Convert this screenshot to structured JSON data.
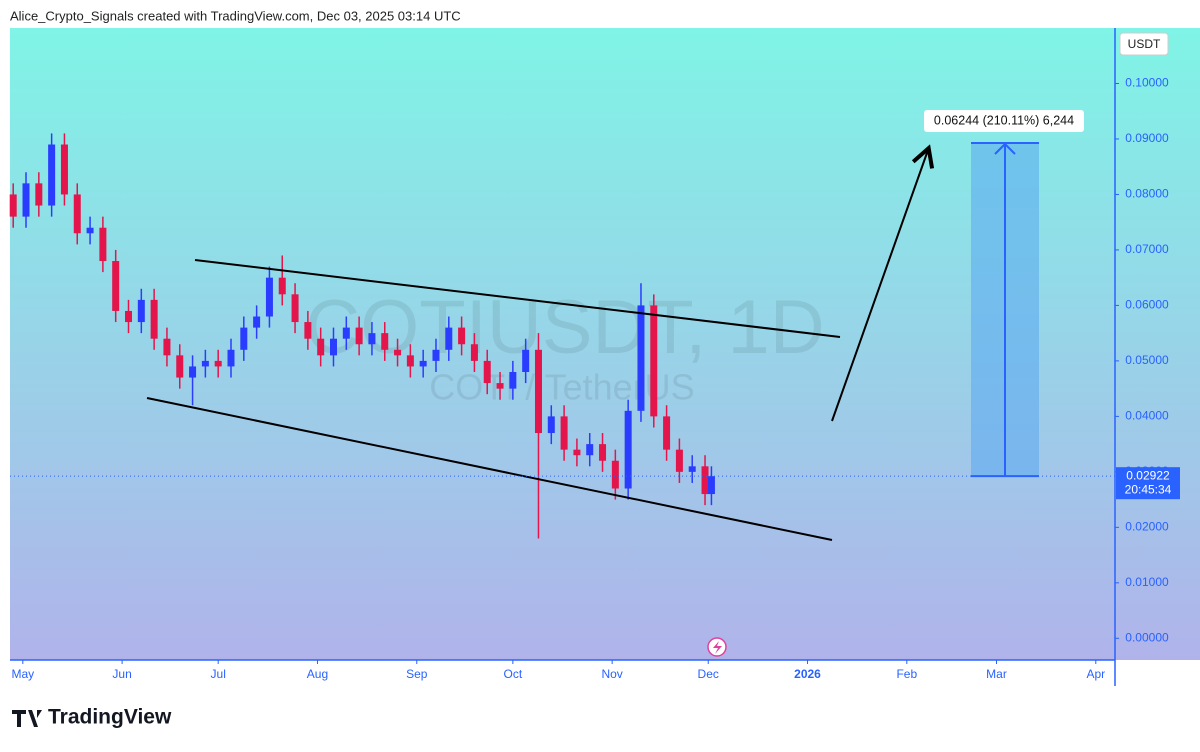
{
  "header": "Alice_Crypto_Signals created with TradingView.com, Dec 03, 2025 03:14 UTC",
  "chart_data": {
    "type": "candlestick",
    "watermark_title": "COTIUSDT, 1D",
    "watermark_subtitle": "COTI / TetherUS",
    "currency": "USDT",
    "up_color": "#2a3dff",
    "down_color": "#e3154a",
    "x": [
      -3,
      1,
      5,
      9,
      13,
      17,
      21,
      25,
      29,
      33,
      37,
      41,
      45,
      49,
      53,
      57,
      61,
      65,
      69,
      73,
      77,
      81,
      85,
      89,
      93,
      97,
      101,
      105,
      109,
      113,
      117,
      121,
      125,
      129,
      133,
      137,
      141,
      145,
      149,
      153,
      157,
      161,
      165,
      169,
      173,
      177,
      181,
      185,
      189,
      193,
      197,
      201,
      205,
      209,
      213,
      215
    ],
    "open": [
      0.08,
      0.076,
      0.082,
      0.078,
      0.089,
      0.08,
      0.073,
      0.074,
      0.068,
      0.059,
      0.057,
      0.061,
      0.054,
      0.051,
      0.047,
      0.049,
      0.05,
      0.049,
      0.052,
      0.056,
      0.058,
      0.065,
      0.062,
      0.057,
      0.054,
      0.051,
      0.054,
      0.056,
      0.053,
      0.055,
      0.052,
      0.051,
      0.049,
      0.05,
      0.052,
      0.056,
      0.053,
      0.05,
      0.046,
      0.045,
      0.048,
      0.052,
      0.037,
      0.04,
      0.034,
      0.033,
      0.035,
      0.032,
      0.027,
      0.041,
      0.06,
      0.04,
      0.034,
      0.03,
      0.031,
      0.026
    ],
    "high": [
      0.082,
      0.084,
      0.084,
      0.091,
      0.091,
      0.082,
      0.076,
      0.076,
      0.07,
      0.061,
      0.063,
      0.063,
      0.056,
      0.053,
      0.051,
      0.052,
      0.052,
      0.054,
      0.058,
      0.06,
      0.067,
      0.069,
      0.064,
      0.059,
      0.056,
      0.056,
      0.058,
      0.058,
      0.057,
      0.057,
      0.054,
      0.053,
      0.052,
      0.054,
      0.058,
      0.058,
      0.055,
      0.052,
      0.048,
      0.05,
      0.054,
      0.055,
      0.042,
      0.042,
      0.036,
      0.037,
      0.037,
      0.034,
      0.043,
      0.064,
      0.062,
      0.042,
      0.036,
      0.033,
      0.033,
      0.031
    ],
    "low": [
      0.074,
      0.074,
      0.076,
      0.076,
      0.078,
      0.071,
      0.071,
      0.066,
      0.057,
      0.055,
      0.055,
      0.052,
      0.049,
      0.045,
      0.042,
      0.047,
      0.047,
      0.047,
      0.05,
      0.054,
      0.056,
      0.06,
      0.055,
      0.052,
      0.049,
      0.049,
      0.052,
      0.051,
      0.051,
      0.05,
      0.049,
      0.047,
      0.047,
      0.048,
      0.05,
      0.051,
      0.048,
      0.044,
      0.043,
      0.043,
      0.046,
      0.018,
      0.035,
      0.032,
      0.031,
      0.031,
      0.03,
      0.025,
      0.025,
      0.039,
      0.038,
      0.032,
      0.028,
      0.028,
      0.024,
      0.024
    ],
    "close": [
      0.076,
      0.082,
      0.078,
      0.089,
      0.08,
      0.073,
      0.074,
      0.068,
      0.059,
      0.057,
      0.061,
      0.054,
      0.051,
      0.047,
      0.049,
      0.05,
      0.049,
      0.052,
      0.056,
      0.058,
      0.065,
      0.062,
      0.057,
      0.054,
      0.051,
      0.054,
      0.056,
      0.053,
      0.055,
      0.052,
      0.051,
      0.049,
      0.05,
      0.052,
      0.056,
      0.053,
      0.05,
      0.046,
      0.045,
      0.048,
      0.052,
      0.037,
      0.04,
      0.034,
      0.033,
      0.035,
      0.032,
      0.027,
      0.041,
      0.06,
      0.04,
      0.034,
      0.03,
      0.031,
      0.026,
      0.02922
    ],
    "xlim": [
      -4,
      341
    ],
    "xticks": [
      {
        "value": 0,
        "label": "May"
      },
      {
        "value": 31,
        "label": "Jun"
      },
      {
        "value": 61,
        "label": "Jul"
      },
      {
        "value": 92,
        "label": "Aug"
      },
      {
        "value": 123,
        "label": "Sep"
      },
      {
        "value": 153,
        "label": "Oct"
      },
      {
        "value": 184,
        "label": "Nov"
      },
      {
        "value": 214,
        "label": "Dec"
      },
      {
        "value": 245,
        "label": "2026"
      },
      {
        "value": 276,
        "label": "Feb"
      },
      {
        "value": 304,
        "label": "Mar"
      },
      {
        "value": 335,
        "label": "Apr"
      }
    ],
    "ylim": [
      -0.00391,
      0.11
    ],
    "yticks": [
      {
        "value": 0,
        "label": "0.00000"
      },
      {
        "value": 0.01,
        "label": "0.01000"
      },
      {
        "value": 0.02,
        "label": "0.02000"
      },
      {
        "value": 0.03,
        "label": "0.03000"
      },
      {
        "value": 0.04,
        "label": "0.04000"
      },
      {
        "value": 0.05,
        "label": "0.05000"
      },
      {
        "value": 0.06,
        "label": "0.06000"
      },
      {
        "value": 0.07,
        "label": "0.07000"
      },
      {
        "value": 0.08,
        "label": "0.08000"
      },
      {
        "value": 0.09,
        "label": "0.09000"
      },
      {
        "value": 0.1,
        "label": "0.10000"
      }
    ],
    "last_price": 0.02922,
    "countdown": "20:45:34",
    "measure_label": "0.06244 (210.11%) 6,244"
  },
  "footer": "TradingView"
}
